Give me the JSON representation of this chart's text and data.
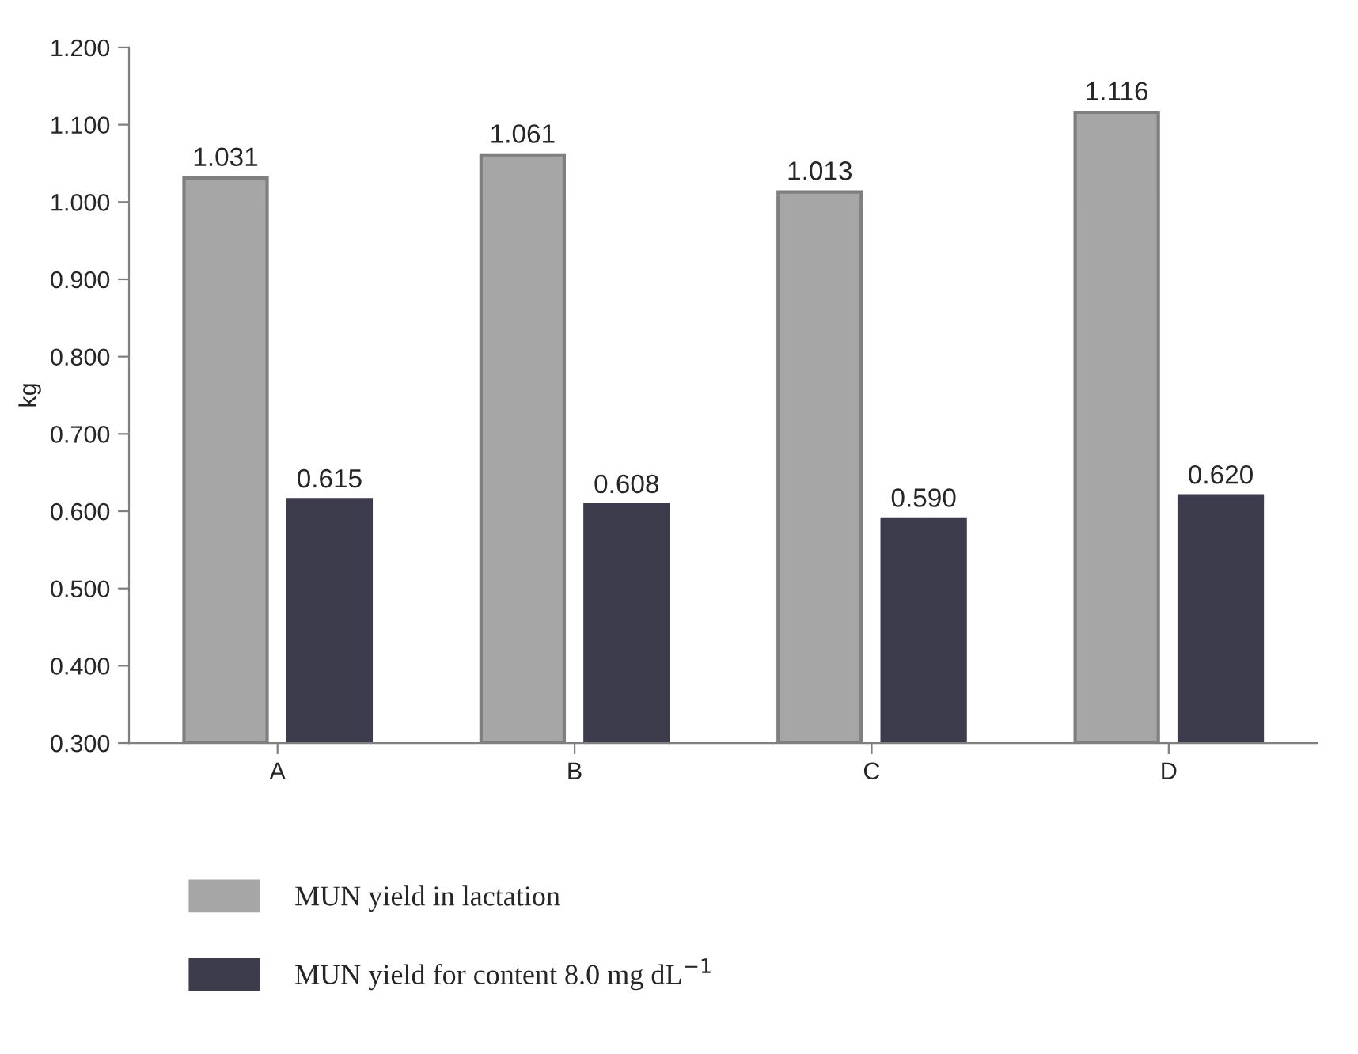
{
  "chart_data": {
    "type": "bar",
    "ylabel": "kg",
    "categories": [
      "A",
      "B",
      "C",
      "D"
    ],
    "series": [
      {
        "name": "MUN yield in lactation",
        "color": "#a6a6a6",
        "values": [
          1.031,
          1.061,
          1.013,
          1.116
        ],
        "value_labels": [
          "1.031",
          "1.061",
          "1.013",
          "1.116"
        ]
      },
      {
        "name": "MUN yield for content 8.0 mg dL$^{−1}$",
        "color": "#3c3c4c",
        "values": [
          0.615,
          0.608,
          0.59,
          0.62
        ],
        "value_labels": [
          "0.615",
          "0.608",
          "0.590",
          "0.620"
        ]
      }
    ],
    "ylim": [
      0.3,
      1.2
    ],
    "yticks": [
      {
        "value": 0.3,
        "label": "0.300"
      },
      {
        "value": 0.4,
        "label": "0.400"
      },
      {
        "value": 0.5,
        "label": "0.500"
      },
      {
        "value": 0.6,
        "label": "0.600"
      },
      {
        "value": 0.7,
        "label": "0.700"
      },
      {
        "value": 0.8,
        "label": "0.800"
      },
      {
        "value": 0.9,
        "label": "0.900"
      },
      {
        "value": 1.0,
        "label": "1.000"
      },
      {
        "value": 1.1,
        "label": "1.100"
      },
      {
        "value": 1.2,
        "label": "1.200"
      }
    ],
    "grid": false,
    "legend": "bottom"
  }
}
